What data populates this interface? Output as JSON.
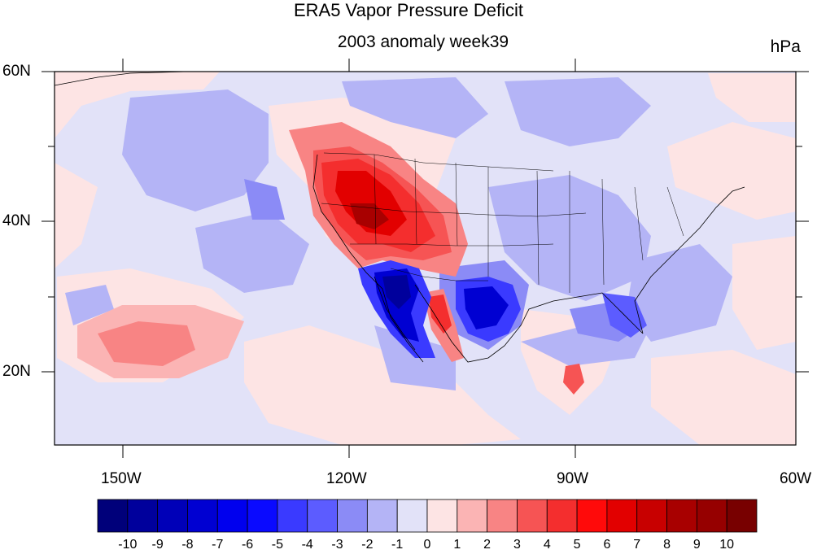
{
  "header": {
    "title": "ERA5 Vapor Pressure Deficit",
    "subtitle": "2003 anomaly week39",
    "units": "hPa"
  },
  "axes": {
    "lat_labels": [
      "60N",
      "40N",
      "20N"
    ],
    "lon_labels": [
      "150W",
      "120W",
      "90W",
      "60W"
    ]
  },
  "colorbar": {
    "labels": [
      "-10",
      "-9",
      "-8",
      "-7",
      "-6",
      "-5",
      "-4",
      "-3",
      "-2",
      "-1",
      "0",
      "1",
      "2",
      "3",
      "4",
      "5",
      "6",
      "7",
      "8",
      "9",
      "10"
    ],
    "colors": [
      "#00007a",
      "#00009c",
      "#0000b8",
      "#0000d2",
      "#0000ee",
      "#0a0aff",
      "#3a3aff",
      "#5c5cff",
      "#8b8bf6",
      "#b4b4f6",
      "#e2e2f8",
      "#fde4e4",
      "#fbb4b4",
      "#f88484",
      "#f65454",
      "#f42e2e",
      "#ff0a0a",
      "#e20000",
      "#c80000",
      "#a80000",
      "#960000",
      "#780000"
    ]
  },
  "map": {
    "background": "#e2e2f8",
    "region": "North America and eastern Pacific"
  }
}
